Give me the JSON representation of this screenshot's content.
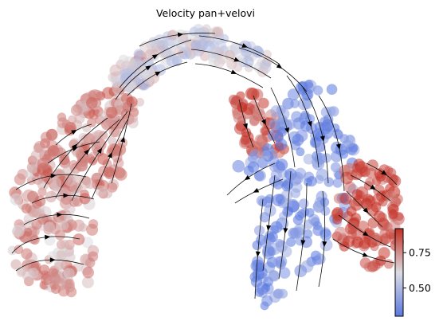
{
  "chart_data": {
    "type": "scatter",
    "title": "Velocity pan+velovi",
    "xlabel": "",
    "ylabel": "",
    "grid": false,
    "overlay": "velocity streamlines with arrowheads",
    "colormap": {
      "name": "coolwarm",
      "low_color": "#5a78e0",
      "mid_color": "#dcdde2",
      "high_color": "#c42e22",
      "range": [
        0.3,
        0.92
      ],
      "ticks": [
        0.5,
        0.75
      ],
      "tick_labels": [
        "0.50",
        "0.75"
      ],
      "placement": "right"
    },
    "point_groups": [
      {
        "region": "left-lower lobe",
        "value": 0.72
      },
      {
        "region": "left arm",
        "value": 0.76
      },
      {
        "region": "top arch",
        "value": 0.58
      },
      {
        "region": "upper-middle crest",
        "value": 0.86
      },
      {
        "region": "central-right column",
        "value": 0.36
      },
      {
        "region": "right lobe",
        "value": 0.88
      }
    ]
  }
}
